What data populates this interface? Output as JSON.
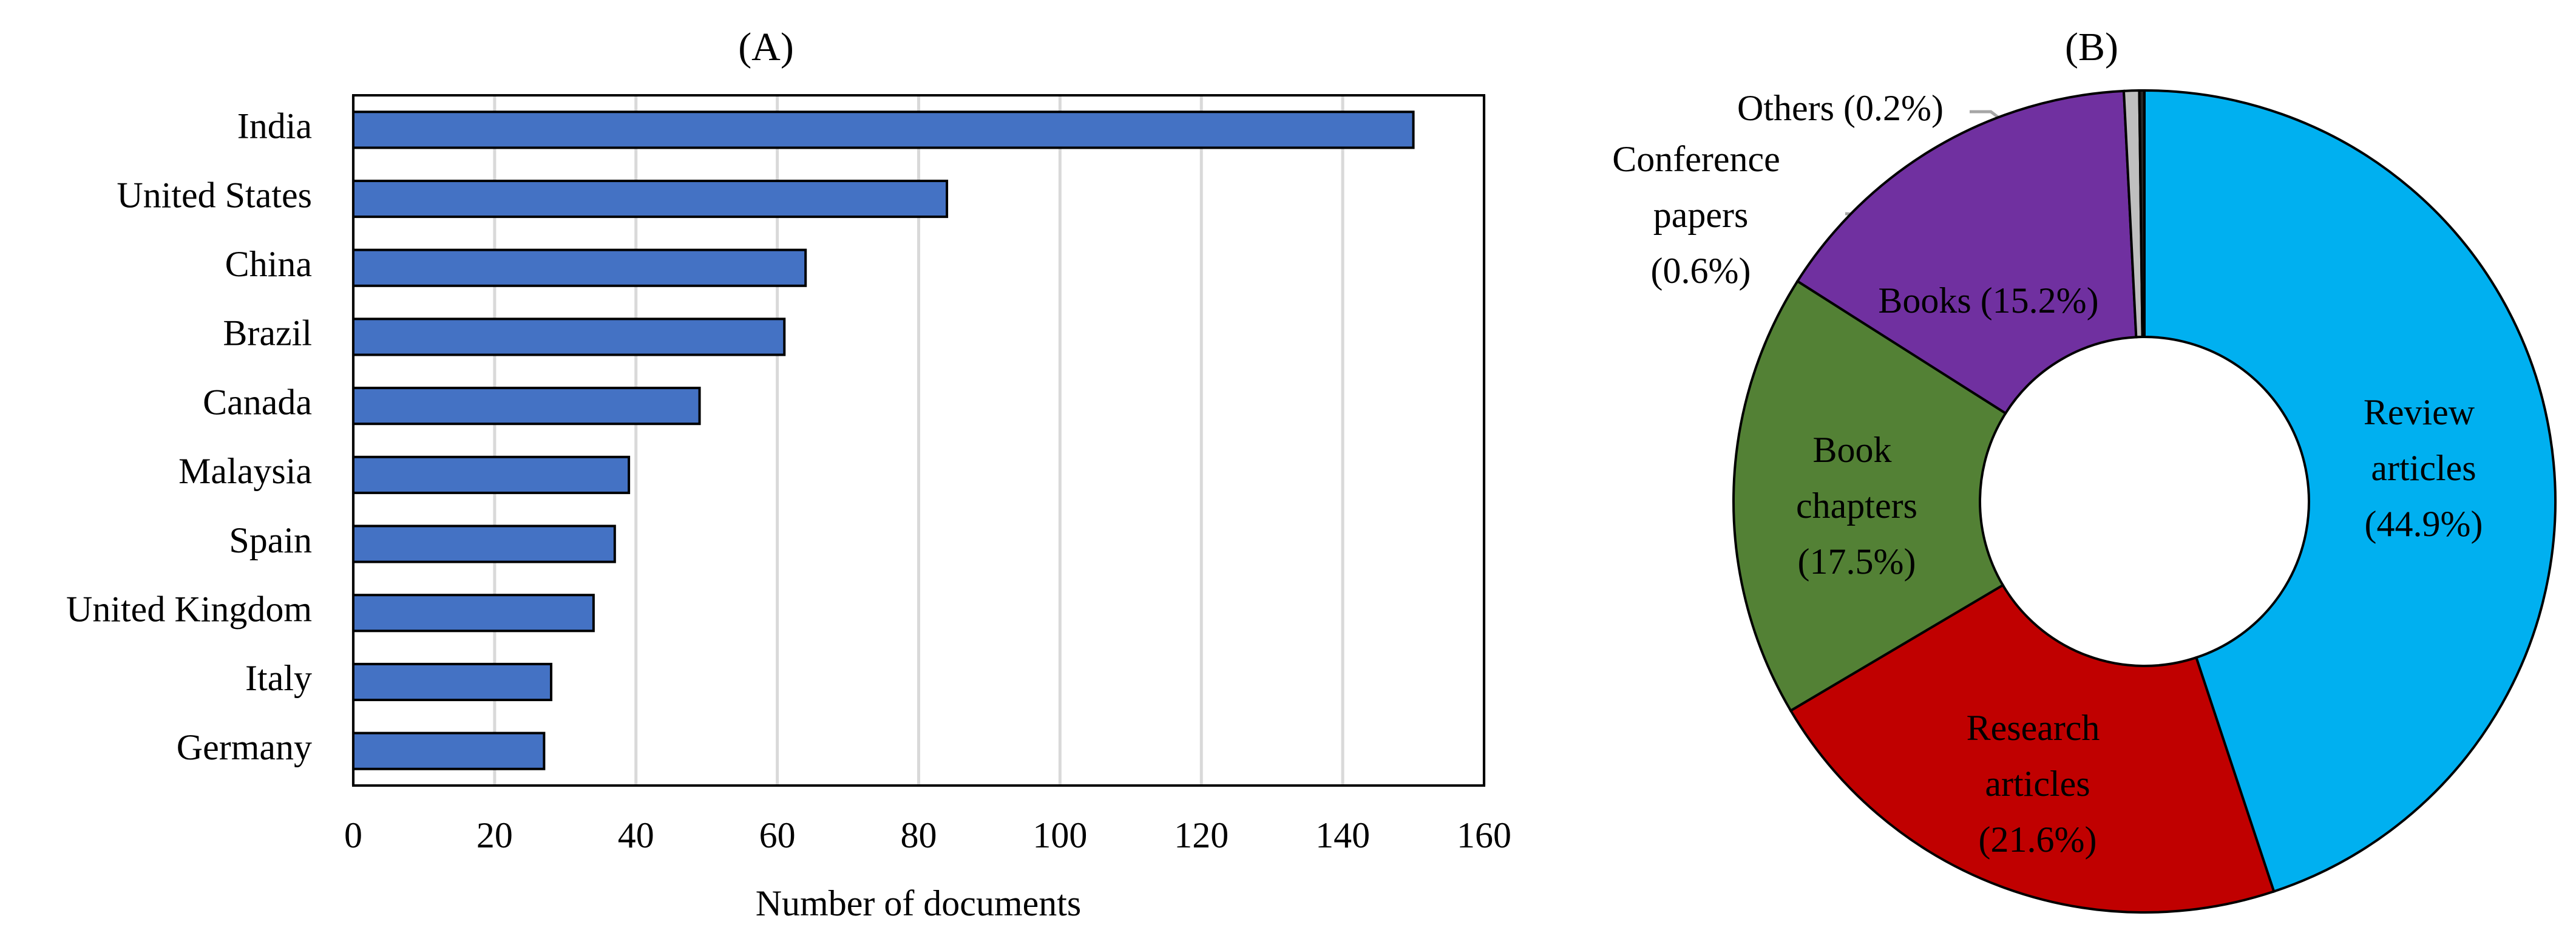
{
  "chart_data": [
    {
      "type": "bar",
      "orientation": "horizontal",
      "title": "(A)",
      "x_label": "Number of documents",
      "categories": [
        "India",
        "United States",
        "China",
        "Brazil",
        "Canada",
        "Malaysia",
        "Spain",
        "United Kingdom",
        "Italy",
        "Germany"
      ],
      "values": [
        150,
        84,
        64,
        61,
        49,
        39,
        37,
        34,
        28,
        27
      ],
      "color": "#4472c4",
      "xlim": [
        0,
        160
      ],
      "xticks": [
        0,
        20,
        40,
        60,
        80,
        100,
        120,
        140,
        160
      ],
      "grid": true
    },
    {
      "type": "donut",
      "title": "(B)",
      "categories": [
        "Review articles",
        "Research articles",
        "Book chapters",
        "Books",
        "Conference papers",
        "Others"
      ],
      "values": [
        44.9,
        21.6,
        17.5,
        15.2,
        0.6,
        0.2
      ],
      "value_labels": [
        "(44.9%)",
        "(21.6%)",
        "(17.5%)",
        "(15.2%)",
        "(0.6%)",
        "(0.2%)"
      ],
      "colors": [
        "#00b0f0",
        "#c00000",
        "#538135",
        "#7030a0",
        "#bfbfbf",
        "#262626"
      ]
    }
  ]
}
